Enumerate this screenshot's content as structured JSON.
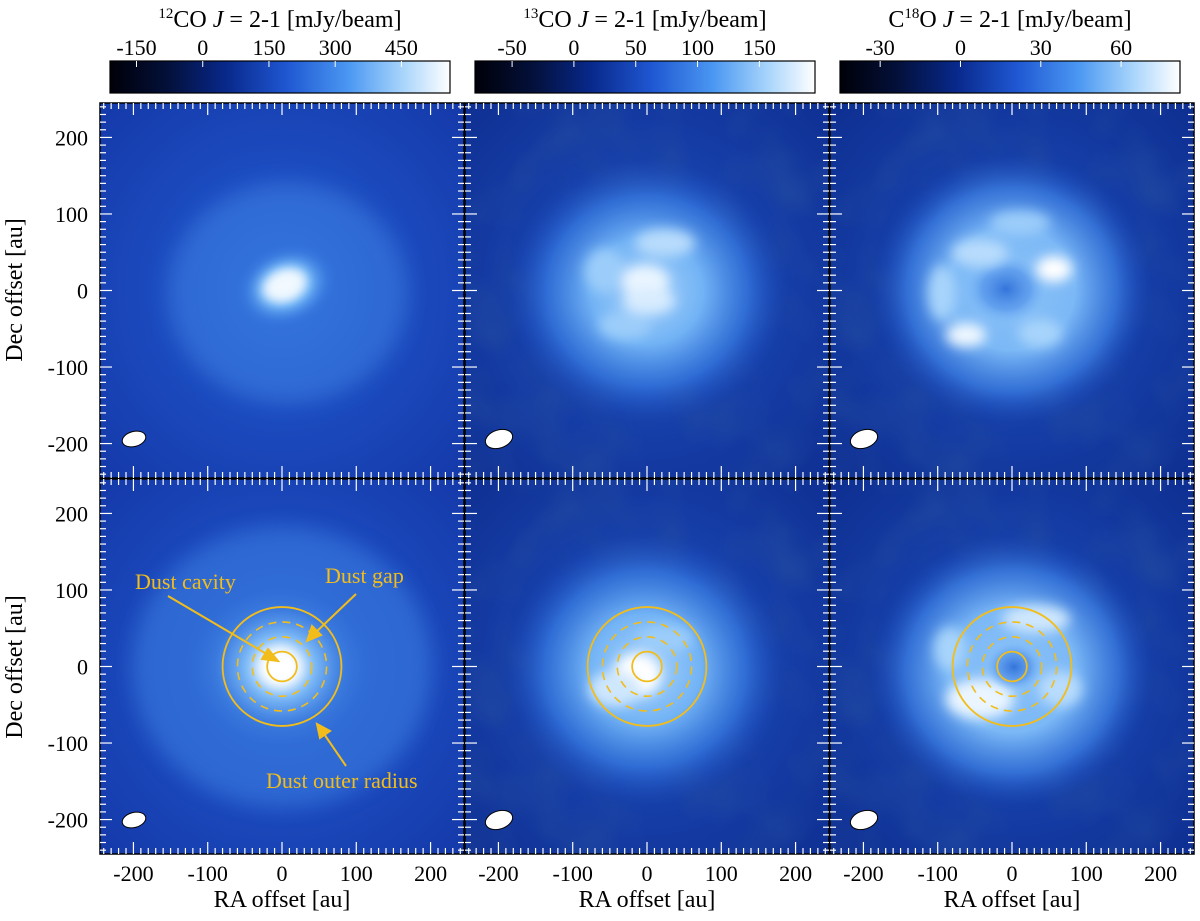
{
  "figure": {
    "x_axis_label": "RA offset [au]",
    "y_axis_label": "Dec offset [au]",
    "x_ticks": [
      "-200",
      "-100",
      "0",
      "100",
      "200"
    ],
    "y_ticks": [
      "200",
      "100",
      "0",
      "-100",
      "-200"
    ],
    "axis_range_au": [
      -245,
      245
    ]
  },
  "colorbars": [
    {
      "line": "CO J = 2-1 [mJy/beam]",
      "superscript": "12",
      "prefix": "",
      "molecule": "CO",
      "j": "J",
      "transition": " = 2-1 [mJy/beam]",
      "ticks": [
        "-150",
        "0",
        "150",
        "300",
        "450"
      ],
      "tick_values": [
        -150,
        0,
        150,
        300,
        450
      ],
      "range": [
        -210,
        560
      ]
    },
    {
      "line": "CO J = 2-1 [mJy/beam]",
      "superscript": "13",
      "prefix": "",
      "molecule": "CO",
      "j": "J",
      "transition": " = 2-1 [mJy/beam]",
      "ticks": [
        "-50",
        "0",
        "50",
        "100",
        "150"
      ],
      "tick_values": [
        -50,
        0,
        50,
        100,
        150
      ],
      "range": [
        -80,
        195
      ]
    },
    {
      "line": "C18O J = 2-1 [mJy/beam]",
      "superscript": "18",
      "prefix": "C",
      "molecule": "O",
      "j": "J",
      "transition": " = 2-1 [mJy/beam]",
      "ticks": [
        "-30",
        "0",
        "30",
        "60"
      ],
      "tick_values": [
        -30,
        0,
        30,
        60
      ],
      "range": [
        -45,
        82
      ]
    }
  ],
  "annotations": {
    "cavity_label": "Dust cavity",
    "gap_label": "Dust gap",
    "outer_label": "Dust outer radius"
  },
  "dust_rings_au": {
    "cavity_radius": 20,
    "gap_inner": 40,
    "gap_outer": 60,
    "outer_radius": 80
  },
  "colors": {
    "ring": "#f2bd1a",
    "colormap": [
      "#000008",
      "#03103a",
      "#08288a",
      "#1f57d2",
      "#4a97f2",
      "#a7d4fb",
      "#ffffff"
    ]
  }
}
